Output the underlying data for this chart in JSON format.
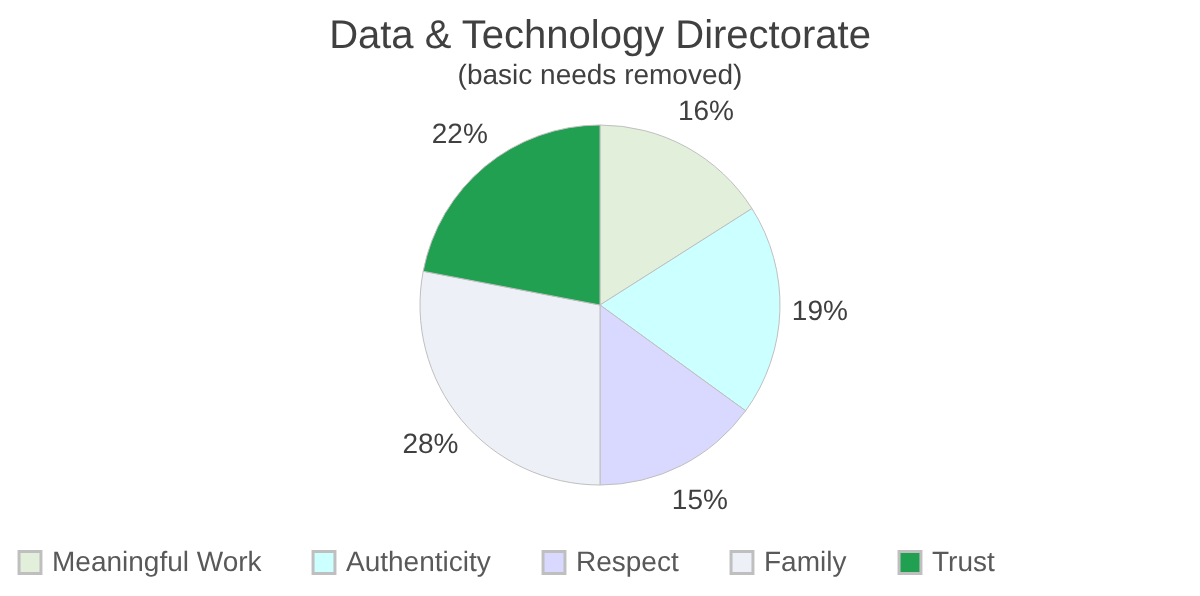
{
  "chart_data": {
    "type": "pie",
    "title": "Data & Technology Directorate",
    "subtitle": "(basic needs removed)",
    "categories": [
      "Meaningful Work",
      "Authenticity",
      "Respect",
      "Family",
      "Trust"
    ],
    "values": [
      16,
      19,
      15,
      28,
      22
    ],
    "colors": [
      "#e2efda",
      "#ccffff",
      "#d9d9ff",
      "#eef0f8",
      "#21a052"
    ],
    "value_labels": [
      "16%",
      "19%",
      "15%",
      "28%",
      "22%"
    ],
    "legend": "bottom"
  }
}
